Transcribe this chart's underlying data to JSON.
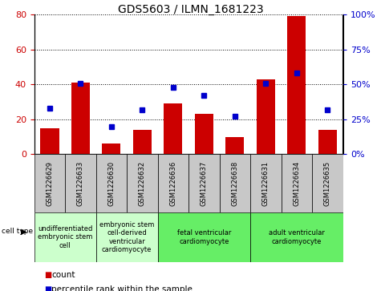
{
  "title": "GDS5603 / ILMN_1681223",
  "samples": [
    "GSM1226629",
    "GSM1226633",
    "GSM1226630",
    "GSM1226632",
    "GSM1226636",
    "GSM1226637",
    "GSM1226638",
    "GSM1226631",
    "GSM1226634",
    "GSM1226635"
  ],
  "counts": [
    15,
    41,
    6,
    14,
    29,
    23,
    10,
    43,
    79,
    14
  ],
  "percentiles": [
    33,
    51,
    20,
    32,
    48,
    42,
    27,
    51,
    58,
    32
  ],
  "ylim_left": [
    0,
    80
  ],
  "ylim_right": [
    0,
    100
  ],
  "yticks_left": [
    0,
    20,
    40,
    60,
    80
  ],
  "yticks_right": [
    0,
    25,
    50,
    75,
    100
  ],
  "cell_types": [
    {
      "label": "undifferentiated\nembryonic stem\ncell",
      "start": 0,
      "end": 2,
      "color": "#ccffcc"
    },
    {
      "label": "embryonic stem\ncell-derived\nventricular\ncardiomyocyte",
      "start": 2,
      "end": 4,
      "color": "#ccffcc"
    },
    {
      "label": "fetal ventricular\ncardiomyocyte",
      "start": 4,
      "end": 7,
      "color": "#66ee66"
    },
    {
      "label": "adult ventricular\ncardiomyocyte",
      "start": 7,
      "end": 10,
      "color": "#66ee66"
    }
  ],
  "bar_color": "#cc0000",
  "dot_color": "#0000cc",
  "tick_color_left": "#cc0000",
  "tick_color_right": "#0000cc",
  "sample_box_color": "#c8c8c8",
  "legend_count_color": "#cc0000",
  "legend_pct_color": "#0000cc",
  "title_fontsize": 10,
  "axis_fontsize": 8,
  "sample_fontsize": 6,
  "celltype_fontsize": 6,
  "legend_fontsize": 7.5
}
